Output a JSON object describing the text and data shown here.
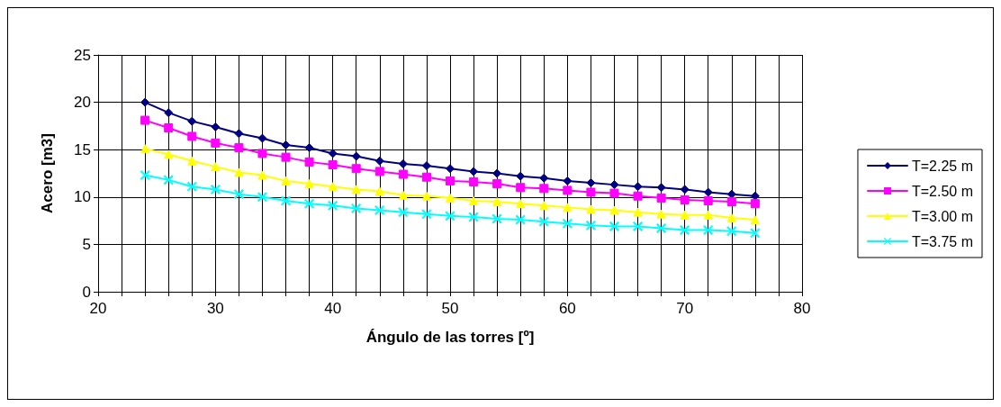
{
  "chart_data": {
    "type": "line",
    "xlabel": "Ángulo de las torres [º]",
    "ylabel": "Acero [m3]",
    "x": [
      24,
      26,
      28,
      30,
      32,
      34,
      36,
      38,
      40,
      42,
      44,
      46,
      48,
      50,
      52,
      54,
      56,
      58,
      60,
      62,
      64,
      66,
      68,
      70,
      72,
      74,
      76
    ],
    "series": [
      {
        "name": "T=2.25 m",
        "color": "#000080",
        "marker": "diamond",
        "values": [
          20.0,
          18.9,
          18.0,
          17.4,
          16.7,
          16.2,
          15.5,
          15.2,
          14.6,
          14.3,
          13.8,
          13.5,
          13.3,
          13.0,
          12.7,
          12.5,
          12.2,
          12.0,
          11.7,
          11.5,
          11.3,
          11.1,
          11.0,
          10.8,
          10.5,
          10.3,
          10.1
        ]
      },
      {
        "name": "T=2.50 m",
        "color": "#ff00ff",
        "marker": "square",
        "values": [
          18.1,
          17.3,
          16.4,
          15.7,
          15.2,
          14.6,
          14.2,
          13.7,
          13.4,
          13.0,
          12.7,
          12.4,
          12.1,
          11.7,
          11.6,
          11.4,
          11.0,
          10.9,
          10.7,
          10.5,
          10.4,
          10.1,
          9.9,
          9.7,
          9.6,
          9.5,
          9.3
        ]
      },
      {
        "name": "T=3.00 m",
        "color": "#ffff00",
        "marker": "triangle",
        "values": [
          15.1,
          14.5,
          13.8,
          13.2,
          12.6,
          12.3,
          11.7,
          11.4,
          11.1,
          10.8,
          10.6,
          10.2,
          10.1,
          9.9,
          9.6,
          9.5,
          9.3,
          9.1,
          8.9,
          8.7,
          8.6,
          8.4,
          8.2,
          8.1,
          8.1,
          7.8,
          7.6
        ]
      },
      {
        "name": "T=3.75 m",
        "color": "#00ffff",
        "marker": "cross",
        "values": [
          12.3,
          11.8,
          11.1,
          10.8,
          10.3,
          10.0,
          9.6,
          9.3,
          9.1,
          8.8,
          8.6,
          8.4,
          8.2,
          8.0,
          7.9,
          7.7,
          7.6,
          7.4,
          7.2,
          7.0,
          6.9,
          6.9,
          6.7,
          6.5,
          6.5,
          6.4,
          6.2
        ]
      }
    ],
    "xlim": [
      20,
      80
    ],
    "xticks": [
      20,
      {
        "value": 22,
        "label": null
      },
      {
        "value": 24,
        "label": null
      },
      {
        "value": 26,
        "label": null
      },
      {
        "value": 28,
        "label": null
      },
      30,
      {
        "value": 32,
        "label": null
      },
      {
        "value": 34,
        "label": null
      },
      {
        "value": 36,
        "label": null
      },
      {
        "value": 38,
        "label": null
      },
      40,
      {
        "value": 42,
        "label": null
      },
      {
        "value": 44,
        "label": null
      },
      {
        "value": 46,
        "label": null
      },
      {
        "value": 48,
        "label": null
      },
      50,
      {
        "value": 52,
        "label": null
      },
      {
        "value": 54,
        "label": null
      },
      {
        "value": 56,
        "label": null
      },
      {
        "value": 58,
        "label": null
      },
      60,
      {
        "value": 62,
        "label": null
      },
      {
        "value": 64,
        "label": null
      },
      {
        "value": 66,
        "label": null
      },
      {
        "value": 68,
        "label": null
      },
      70,
      {
        "value": 72,
        "label": null
      },
      {
        "value": 74,
        "label": null
      },
      {
        "value": 76,
        "label": null
      },
      {
        "value": 78,
        "label": null
      },
      80
    ],
    "ylim": [
      0,
      25
    ],
    "yticks": [
      0,
      5,
      10,
      15,
      20,
      25
    ],
    "grid": true,
    "legend": "right",
    "line_style": "solid"
  }
}
